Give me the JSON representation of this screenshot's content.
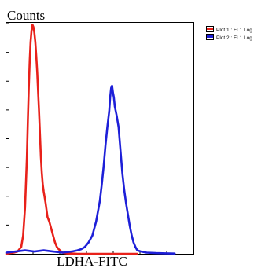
{
  "chart_data": {
    "type": "line",
    "title": "",
    "ylabel": "Counts",
    "xlabel": "LDHA-FITC",
    "grid": false,
    "legend_position": "top-right",
    "xlim": [
      0,
      1000
    ],
    "ylim": [
      0,
      100
    ],
    "series": [
      {
        "name": "Plot 1 : FL1 Log",
        "color": "#e8211a",
        "x": [
          0,
          20,
          40,
          60,
          80,
          90,
          100,
          110,
          115,
          120,
          125,
          130,
          135,
          140,
          145,
          150,
          155,
          160,
          165,
          170,
          175,
          180,
          185,
          190,
          195,
          200,
          210,
          220,
          230,
          240,
          250,
          260,
          270,
          280,
          300,
          320,
          340,
          360,
          380,
          400,
          450,
          500,
          550,
          600,
          650,
          700
        ],
        "y": [
          0,
          0.3,
          0.5,
          1,
          3,
          8,
          20,
          42,
          58,
          72,
          84,
          92,
          97,
          99.5,
          98.5,
          96,
          92,
          86,
          79,
          70,
          62,
          52,
          42,
          35,
          30,
          27,
          22,
          16,
          14,
          11,
          8,
          5,
          3,
          2,
          0.5,
          0.2,
          0.1,
          0.1,
          0,
          0,
          0,
          0,
          0,
          0,
          0,
          0
        ]
      },
      {
        "name": "Plot 2 : FL1 Log",
        "color": "#1d1fd8",
        "x": [
          0,
          50,
          100,
          150,
          200,
          250,
          300,
          350,
          380,
          400,
          420,
          440,
          460,
          480,
          500,
          510,
          520,
          530,
          540,
          550,
          555,
          560,
          565,
          570,
          575,
          580,
          590,
          600,
          610,
          620,
          630,
          640,
          650,
          660,
          670,
          680,
          690,
          700,
          720,
          750,
          800,
          850,
          900
        ],
        "y": [
          0.5,
          1,
          1.5,
          1,
          1.5,
          1,
          0.5,
          1,
          1.5,
          2,
          3,
          5,
          8,
          14,
          23,
          30,
          38,
          47,
          55,
          62,
          68,
          72,
          73,
          70,
          68,
          64,
          60,
          55,
          45,
          35,
          28,
          22,
          17,
          12,
          8,
          5,
          3,
          1.5,
          1,
          0.5,
          0.3,
          0.2,
          0.1
        ]
      }
    ]
  }
}
